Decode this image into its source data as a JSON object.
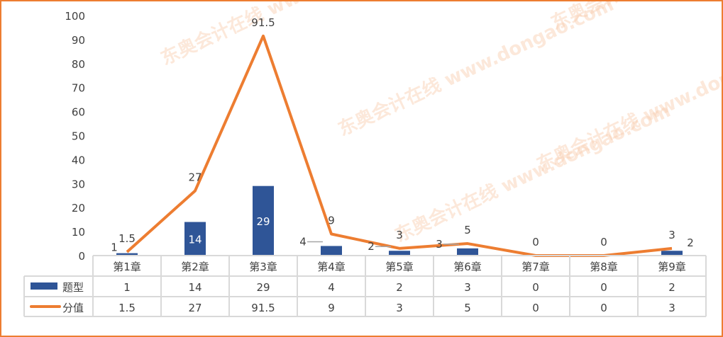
{
  "chart_data": {
    "type": "bar+line",
    "categories": [
      "第1章",
      "第2章",
      "第3章",
      "第4章",
      "第5章",
      "第6章",
      "第7章",
      "第8章",
      "第9章"
    ],
    "series": [
      {
        "name": "题型",
        "type": "bar",
        "color": "#2F5597",
        "values": [
          1,
          14,
          29,
          4,
          2,
          3,
          0,
          0,
          2
        ]
      },
      {
        "name": "分值",
        "type": "line",
        "color": "#ED7D31",
        "values": [
          1.5,
          27,
          91.5,
          9,
          3,
          5,
          0,
          0,
          3
        ]
      }
    ],
    "y_ticks": [
      "0",
      "10",
      "20",
      "30",
      "40",
      "50",
      "60",
      "70",
      "80",
      "90",
      "100"
    ],
    "ylim": [
      0,
      100
    ],
    "grid": false,
    "legend": "data-table-left",
    "data_table": true
  },
  "watermark": "东奥会计在线 www.dongao.com"
}
